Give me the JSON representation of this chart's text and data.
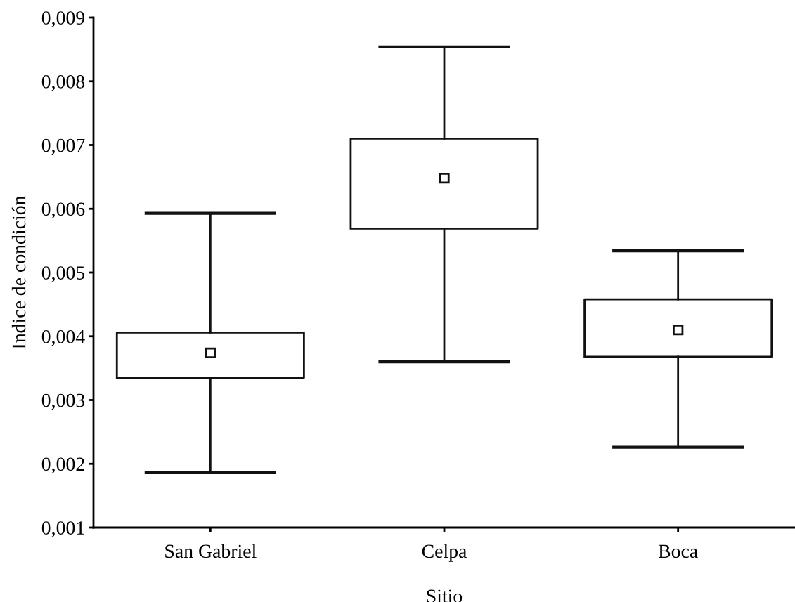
{
  "chart_data": {
    "type": "box",
    "xlabel": "Sitio",
    "ylabel": "Indice de condición",
    "categories": [
      "San Gabriel",
      "Celpa",
      "Boca"
    ],
    "boxes": [
      {
        "low": 0.00186,
        "q1": 0.00335,
        "median": 0.00374,
        "q3": 0.00406,
        "high": 0.00593
      },
      {
        "low": 0.0036,
        "q1": 0.00569,
        "median": 0.00648,
        "q3": 0.0071,
        "high": 0.00854
      },
      {
        "low": 0.00226,
        "q1": 0.00368,
        "median": 0.0041,
        "q3": 0.00458,
        "high": 0.00534
      }
    ],
    "ylim": [
      0.001,
      0.009
    ],
    "yticks": [
      {
        "value": 0.001,
        "label": "0,001"
      },
      {
        "value": 0.002,
        "label": "0,002"
      },
      {
        "value": 0.003,
        "label": "0,003"
      },
      {
        "value": 0.004,
        "label": "0,004"
      },
      {
        "value": 0.005,
        "label": "0,005"
      },
      {
        "value": 0.006,
        "label": "0,006"
      },
      {
        "value": 0.007,
        "label": "0,007"
      },
      {
        "value": 0.008,
        "label": "0,008"
      },
      {
        "value": 0.009,
        "label": "0,009"
      }
    ],
    "marker": "square",
    "grid": false,
    "legend": false
  }
}
